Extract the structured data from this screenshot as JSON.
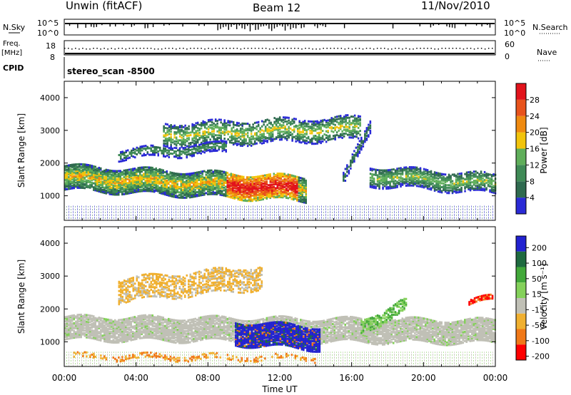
{
  "header": {
    "station": "Unwin (fitACF)",
    "beam": "Beam 12",
    "date": "11/Nov/2010"
  },
  "top_panels": {
    "nsky_label": "N.Sky",
    "nsky_ticks_left": [
      "10^5",
      "10^0"
    ],
    "nsky_ticks_right": [
      "10^5",
      "10^0"
    ],
    "nsearch_label": "N.Search",
    "freq_label": "Freq.",
    "freq_unit": "[MHz]",
    "freq_ticks": [
      "18",
      "8"
    ],
    "nave_ticks": [
      "60",
      "0"
    ],
    "nave_label": "Nave",
    "cpid_label": "CPID",
    "cpid_value": "stereo_scan -8500"
  },
  "colors": {
    "power_scale": [
      "#2a2ad6",
      "#2f6a4f",
      "#3f8a56",
      "#5fae5a",
      "#f2c40c",
      "#ef8a10",
      "#e8531c",
      "#e2131c"
    ],
    "velocity_scale": [
      "#2222d0",
      "#1f6a40",
      "#42a83a",
      "#84d15a",
      "#c0c0b6",
      "#f0b030",
      "#f07818",
      "#ff0000"
    ],
    "background_grey": "#c0c0b6"
  },
  "chart_data": [
    {
      "type": "heatmap",
      "name": "power",
      "ylabel": "Slant Range [km]",
      "xlabel": "Time UT",
      "x_ticks": [
        "00:00",
        "04:00",
        "08:00",
        "12:00",
        "16:00",
        "20:00",
        "00:00"
      ],
      "y_ticks": [
        "1000",
        "2000",
        "3000",
        "4000"
      ],
      "ylim": [
        250,
        4500
      ],
      "xlim_hours": [
        0,
        24
      ],
      "colorbar": {
        "label": "Power [dB]",
        "ticks": [
          "4",
          "8",
          "12",
          "16",
          "20",
          "24",
          "28"
        ],
        "range": [
          0,
          30
        ]
      },
      "features": [
        {
          "desc": "main echo band",
          "x_start": 0,
          "x_end": 13.5,
          "range_start_km": 1650,
          "range_end_km": 1150,
          "max_power": 28
        },
        {
          "desc": "upper echo band",
          "x_start": 5.5,
          "x_end": 16.5,
          "range_start_km": 2900,
          "range_end_km": 3100,
          "max_power": 16
        },
        {
          "desc": "late band",
          "x_start": 17,
          "x_end": 24,
          "range_start_km": 1700,
          "range_end_km": 1400,
          "max_power": 16
        }
      ]
    },
    {
      "type": "heatmap",
      "name": "velocity",
      "ylabel": "Slant Range [km]",
      "xlabel": "Time UT",
      "x_ticks": [
        "00:00",
        "04:00",
        "08:00",
        "12:00",
        "16:00",
        "20:00",
        "00:00"
      ],
      "y_ticks": [
        "1000",
        "2000",
        "3000",
        "4000"
      ],
      "ylim": [
        250,
        4500
      ],
      "xlim_hours": [
        0,
        24
      ],
      "colorbar": {
        "label": "Velocity [m s⁻¹]",
        "ticks": [
          "200",
          "100",
          "50",
          "15",
          "-15",
          "-50",
          "-100",
          "-200"
        ],
        "range": [
          -250,
          250
        ]
      },
      "features": [
        {
          "desc": "ground scatter band",
          "x_start": 0,
          "x_end": 24,
          "range_km": 1400,
          "velocity": 0
        },
        {
          "desc": "positive velocity patch",
          "x_start": 9.5,
          "x_end": 14.2,
          "range_start_km": 900,
          "range_end_km": 1600,
          "velocity": 200
        },
        {
          "desc": "negative velocity upper band",
          "x_start": 3,
          "x_end": 11,
          "range_start_km": 2300,
          "range_end_km": 3200,
          "velocity": -50
        }
      ]
    }
  ]
}
